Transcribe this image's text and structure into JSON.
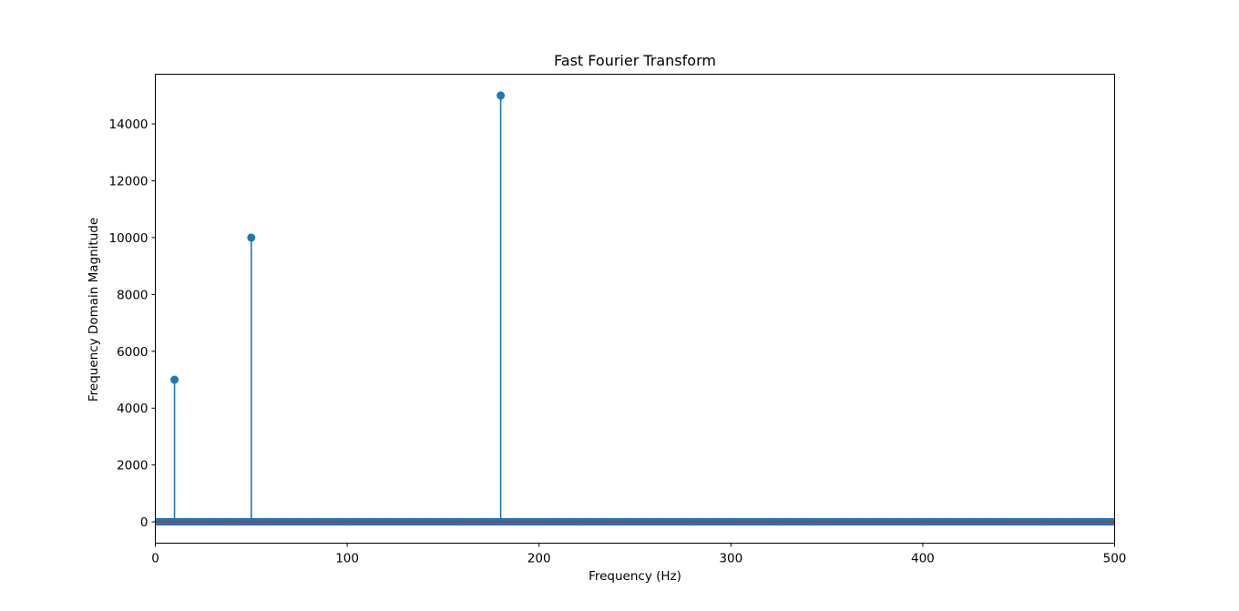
{
  "chart_data": {
    "type": "stem",
    "title": "Fast Fourier Transform",
    "xlabel": "Frequency (Hz)",
    "ylabel": "Frequency Domain Magnitude",
    "xlim": [
      0,
      500
    ],
    "ylim": [
      -750,
      15750
    ],
    "x_ticks": [
      0,
      100,
      200,
      300,
      400,
      500
    ],
    "y_ticks": [
      0,
      2000,
      4000,
      6000,
      8000,
      10000,
      12000,
      14000
    ],
    "grid": false,
    "baseline": 0,
    "peaks": [
      {
        "x": 10,
        "y": 5000
      },
      {
        "x": 50,
        "y": 10000
      },
      {
        "x": 180,
        "y": 15000
      }
    ],
    "noise_floor": {
      "x_start": 0,
      "x_end": 500,
      "x_step": 1,
      "y": 0
    },
    "colors": {
      "stem": "#1f77b4",
      "baseline": "#d62728"
    }
  }
}
